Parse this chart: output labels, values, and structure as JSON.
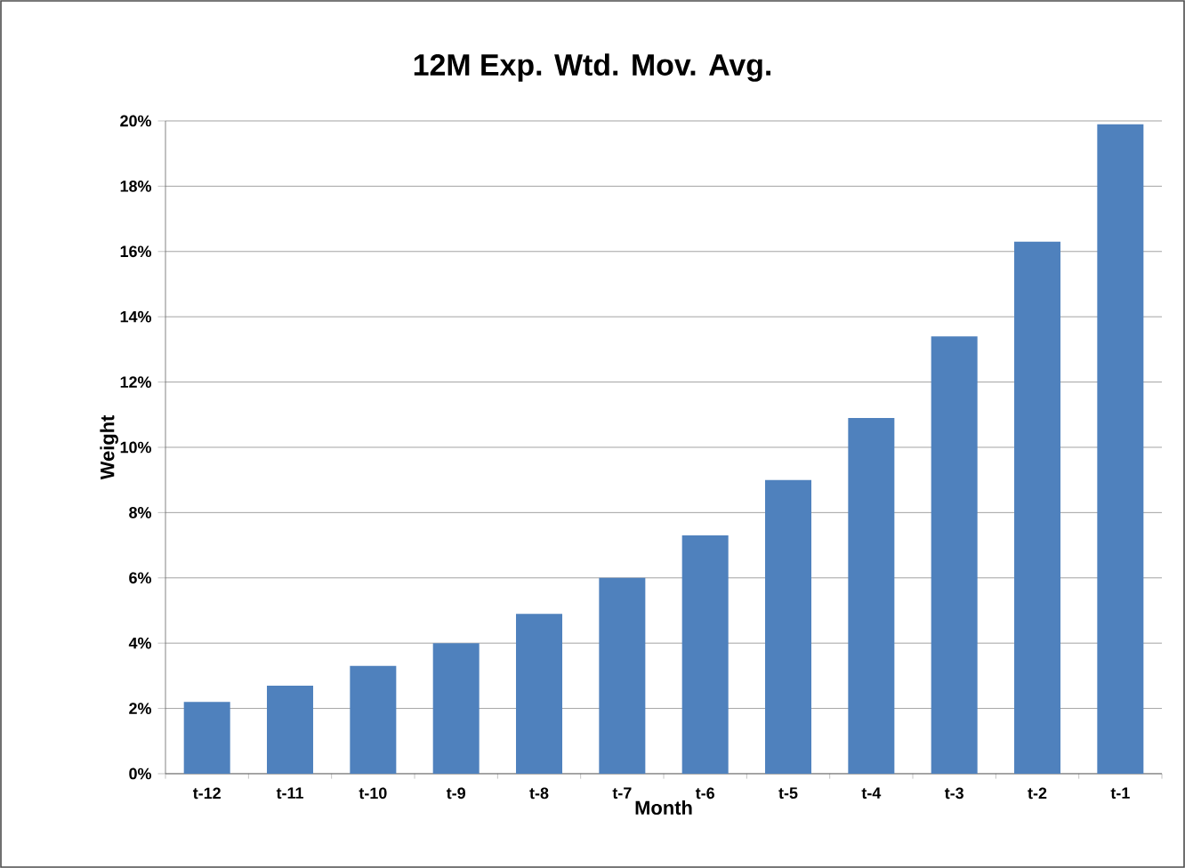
{
  "chart_data": {
    "type": "bar",
    "title": "12M Exp. Wtd. Mov. Avg.",
    "xlabel": "Month",
    "ylabel": "Weight",
    "categories": [
      "t-12",
      "t-11",
      "t-10",
      "t-9",
      "t-8",
      "t-7",
      "t-6",
      "t-5",
      "t-4",
      "t-3",
      "t-2",
      "t-1"
    ],
    "values": [
      2.2,
      2.7,
      3.3,
      4.0,
      4.9,
      6.0,
      7.3,
      9.0,
      10.9,
      13.4,
      16.3,
      19.9
    ],
    "color": "#4f81bd",
    "ylim": [
      0,
      20
    ],
    "yticks": [
      {
        "value": 0,
        "label": "0%"
      },
      {
        "value": 2,
        "label": "2%"
      },
      {
        "value": 4,
        "label": "4%"
      },
      {
        "value": 6,
        "label": "6%"
      },
      {
        "value": 8,
        "label": "8%"
      },
      {
        "value": 10,
        "label": "10%"
      },
      {
        "value": 12,
        "label": "12%"
      },
      {
        "value": 14,
        "label": "14%"
      },
      {
        "value": 16,
        "label": "16%"
      },
      {
        "value": 18,
        "label": "18%"
      },
      {
        "value": 20,
        "label": "20%"
      }
    ],
    "grid": "y"
  }
}
